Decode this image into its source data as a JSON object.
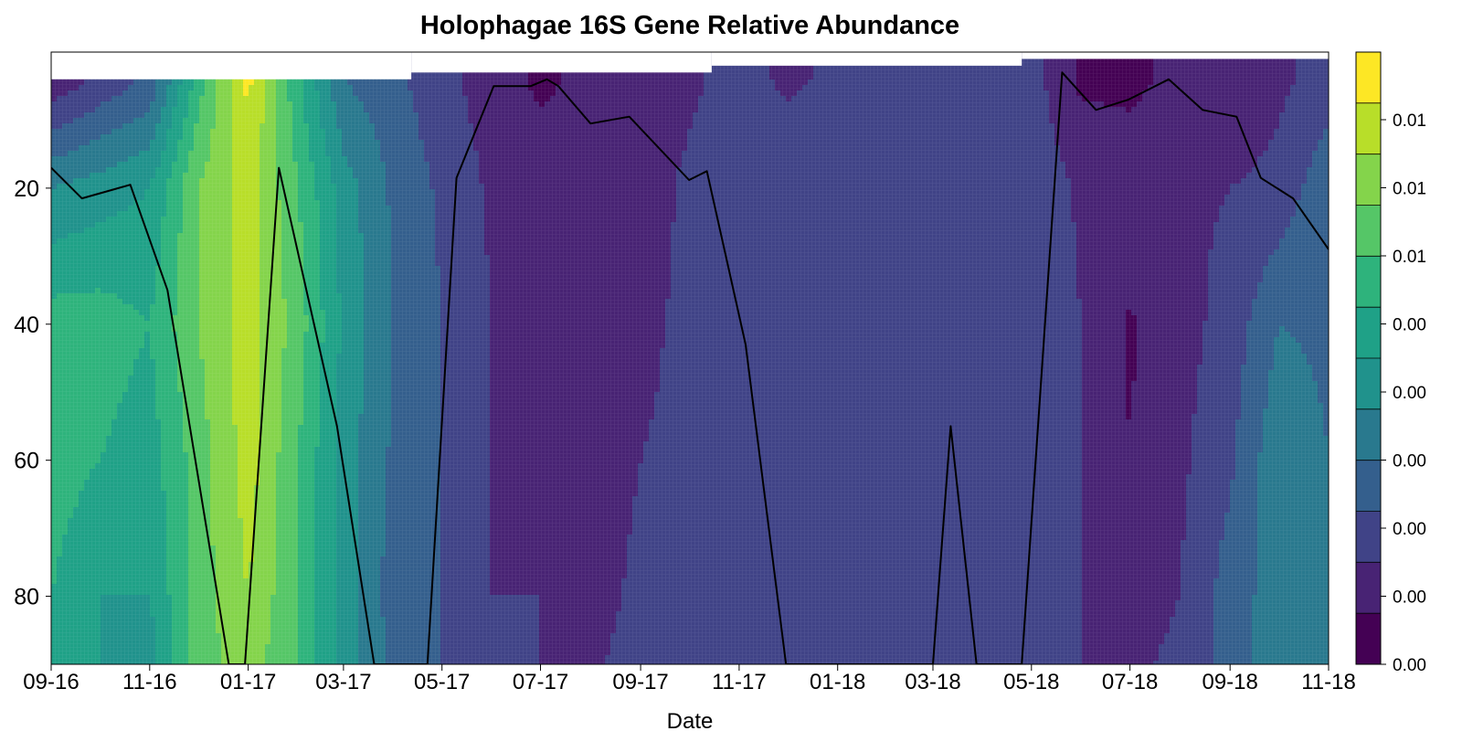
{
  "chart_data": {
    "type": "heatmap",
    "title": "Holophagae 16S Gene Relative Abundance",
    "xlabel": "Date",
    "ylabel": "",
    "x_ticks": [
      "09-16",
      "11-16",
      "01-17",
      "03-17",
      "05-17",
      "07-17",
      "09-17",
      "11-17",
      "01-18",
      "03-18",
      "05-18",
      "07-18",
      "09-18",
      "11-18"
    ],
    "x_tick_dates": [
      "2016-09-01",
      "2016-11-01",
      "2017-01-01",
      "2017-03-01",
      "2017-05-01",
      "2017-07-01",
      "2017-09-01",
      "2017-11-01",
      "2018-01-01",
      "2018-03-01",
      "2018-05-01",
      "2018-07-01",
      "2018-09-01",
      "2018-11-01"
    ],
    "xlim": [
      "2016-09-01",
      "2018-11-01"
    ],
    "y_ticks": [
      20,
      40,
      60,
      80
    ],
    "ylim": [
      90,
      0
    ],
    "y_reversed": true,
    "colorbar_ticks": [
      "0.00",
      "0.00",
      "0.00",
      "0.00",
      "0.00",
      "0.00",
      "0.01",
      "0.01",
      "0.01"
    ],
    "colorbar_levels": 12,
    "colormap": "viridis",
    "colorbar_colors": [
      "#440154",
      "#482374",
      "#404387",
      "#345f8d",
      "#29798e",
      "#20928c",
      "#1fa187",
      "#2eb37c",
      "#55c667",
      "#84d44b",
      "#b8de29",
      "#fde725"
    ],
    "line_series": {
      "color": "#000000",
      "points": [
        [
          "2016-09-01",
          17
        ],
        [
          "2016-09-20",
          21.5
        ],
        [
          "2016-10-20",
          19.5
        ],
        [
          "2016-11-12",
          35
        ],
        [
          "2016-12-20",
          90
        ],
        [
          "2016-12-30",
          90
        ],
        [
          "2017-01-20",
          17
        ],
        [
          "2017-02-25",
          55
        ],
        [
          "2017-03-20",
          90
        ],
        [
          "2017-04-22",
          90
        ],
        [
          "2017-05-10",
          18.5
        ],
        [
          "2017-06-02",
          5
        ],
        [
          "2017-06-25",
          5
        ],
        [
          "2017-07-05",
          4
        ],
        [
          "2017-07-12",
          5
        ],
        [
          "2017-08-01",
          10.5
        ],
        [
          "2017-08-25",
          9.5
        ],
        [
          "2017-10-01",
          18.8
        ],
        [
          "2017-10-12",
          17.5
        ],
        [
          "2017-11-05",
          43
        ],
        [
          "2017-11-30",
          90
        ],
        [
          "2018-03-01",
          90
        ],
        [
          "2018-03-12",
          55
        ],
        [
          "2018-03-28",
          90
        ],
        [
          "2018-04-25",
          90
        ],
        [
          "2018-05-20",
          3
        ],
        [
          "2018-06-10",
          8.5
        ],
        [
          "2018-06-30",
          7
        ],
        [
          "2018-07-25",
          4
        ],
        [
          "2018-08-15",
          8.5
        ],
        [
          "2018-09-05",
          9.5
        ],
        [
          "2018-09-20",
          18.5
        ],
        [
          "2018-10-10",
          21.5
        ],
        [
          "2018-11-01",
          29
        ]
      ]
    },
    "surface_top_depth": [
      [
        "2016-09-01",
        4
      ],
      [
        "2017-04-12",
        3
      ],
      [
        "2017-10-15",
        2
      ],
      [
        "2018-04-25",
        1
      ]
    ],
    "abundance_grid": {
      "dates": [
        "2016-09-01",
        "2016-10-01",
        "2016-11-01",
        "2016-12-01",
        "2017-01-01",
        "2017-02-01",
        "2017-03-01",
        "2017-04-01",
        "2017-05-01",
        "2017-06-01",
        "2017-07-01",
        "2017-08-01",
        "2017-09-01",
        "2017-10-01",
        "2017-11-01",
        "2017-12-01",
        "2018-01-01",
        "2018-02-01",
        "2018-03-01",
        "2018-04-01",
        "2018-05-01",
        "2018-06-01",
        "2018-07-01",
        "2018-08-01",
        "2018-09-01",
        "2018-10-01",
        "2018-11-01"
      ],
      "depths": [
        4,
        20,
        40,
        60,
        80,
        90
      ],
      "levels": [
        [
          1.2,
          2.2,
          3.2,
          7.5,
          11.3,
          7.2,
          4.0,
          3.3,
          2.3,
          1.5,
          0.8,
          1.3,
          1.5,
          1.8,
          2.4,
          1.8,
          2.2,
          2.0,
          2.0,
          2.0,
          2.4,
          0.8,
          0.8,
          1.2,
          1.0,
          1.8,
          2.4
        ],
        [
          5.0,
          5.5,
          6.0,
          9.0,
          10.5,
          8.0,
          5.5,
          3.8,
          2.8,
          1.8,
          1.5,
          1.5,
          1.5,
          2.2,
          2.8,
          2.8,
          2.8,
          2.8,
          2.8,
          2.8,
          2.8,
          1.8,
          1.5,
          1.8,
          2.0,
          2.3,
          3.8
        ],
        [
          7.5,
          7.5,
          7.0,
          9.0,
          10.5,
          8.5,
          5.8,
          4.0,
          3.0,
          2.0,
          1.8,
          1.2,
          1.8,
          2.2,
          2.5,
          2.8,
          2.8,
          2.8,
          2.8,
          2.8,
          2.8,
          2.0,
          0.9,
          1.6,
          2.4,
          4.0,
          3.8
        ],
        [
          7.5,
          7.0,
          6.5,
          8.5,
          10.5,
          8.0,
          5.5,
          3.8,
          3.0,
          2.0,
          1.8,
          1.3,
          2.0,
          2.2,
          2.5,
          2.8,
          2.8,
          2.8,
          2.8,
          2.8,
          2.8,
          2.0,
          1.0,
          1.8,
          2.8,
          4.8,
          4.0
        ],
        [
          7.0,
          6.0,
          6.0,
          8.5,
          10.0,
          8.0,
          5.5,
          3.5,
          3.0,
          2.0,
          2.0,
          1.5,
          2.3,
          2.8,
          2.5,
          2.8,
          2.8,
          2.5,
          2.5,
          2.5,
          2.8,
          2.0,
          1.6,
          2.0,
          3.5,
          4.5,
          4.5
        ],
        [
          7.0,
          6.0,
          5.5,
          8.5,
          9.5,
          8.0,
          5.5,
          3.8,
          3.0,
          2.0,
          2.0,
          1.8,
          2.5,
          3.0,
          2.5,
          2.8,
          2.8,
          2.5,
          2.2,
          2.0,
          2.8,
          2.0,
          1.8,
          2.2,
          3.5,
          4.5,
          4.5
        ]
      ]
    }
  }
}
